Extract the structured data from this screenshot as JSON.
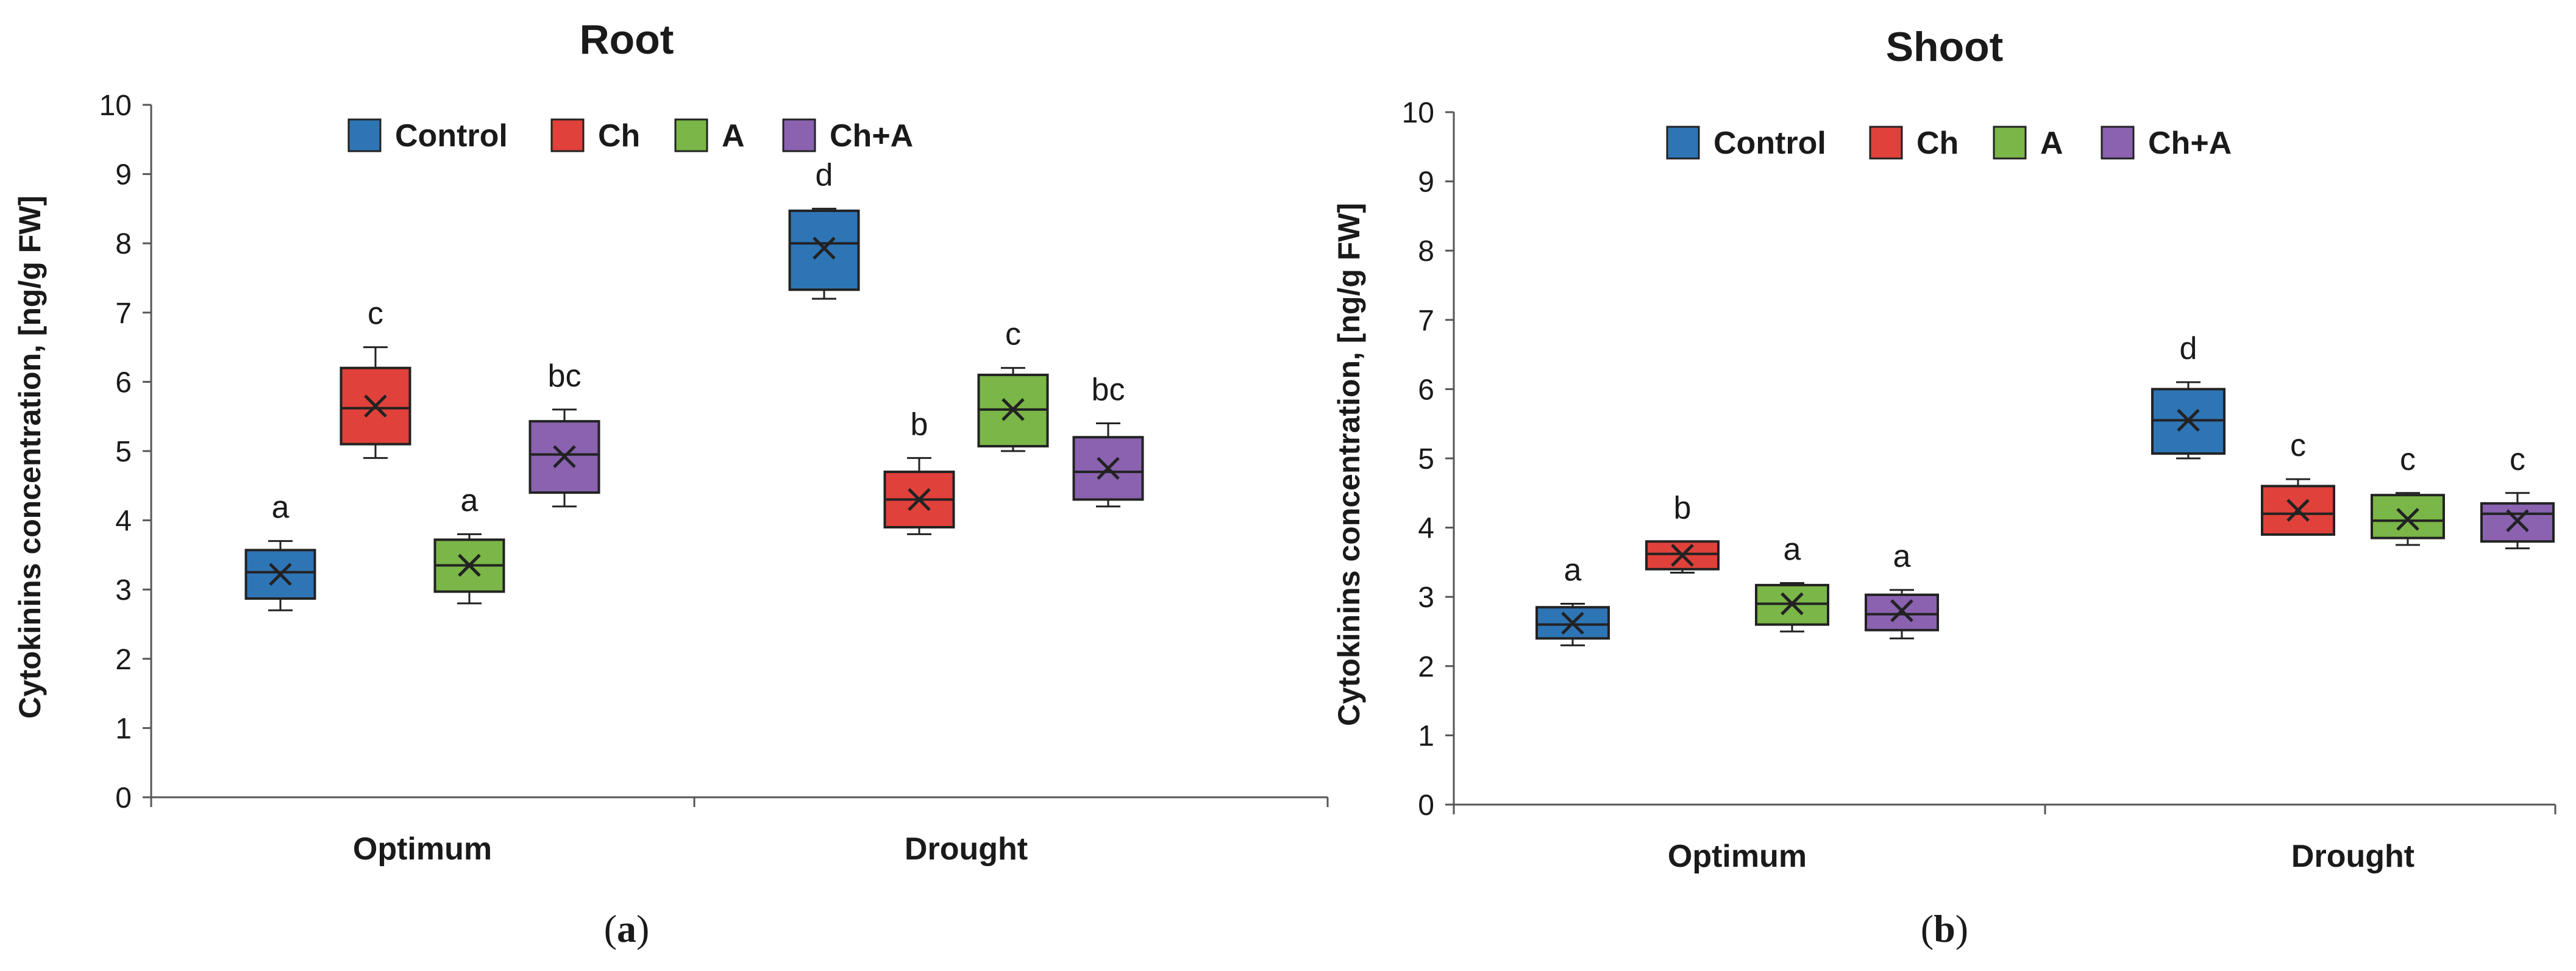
{
  "chart_data": [
    {
      "type": "box",
      "panel_label": "a",
      "title": "Root",
      "ylabel": "Cytokinins concentration, [ng/g FW]",
      "xlabel": "",
      "ylim": [
        0,
        10
      ],
      "yticks": [
        "0",
        "1",
        "2",
        "3",
        "4",
        "5",
        "6",
        "7",
        "8",
        "9",
        "10"
      ],
      "categories": [
        "Optimum",
        "Drought"
      ],
      "legend_position": "top-center",
      "series": [
        {
          "name": "Control",
          "color": "#2e75b6",
          "boxes": [
            {
              "whisker_low": 2.7,
              "q1": 2.87,
              "median": 3.25,
              "q3": 3.57,
              "whisker_high": 3.7,
              "mean": 3.22,
              "letter": "a"
            },
            {
              "whisker_low": 7.2,
              "q1": 7.33,
              "median": 8.0,
              "q3": 8.47,
              "whisker_high": 8.5,
              "mean": 7.93,
              "letter": "d"
            }
          ]
        },
        {
          "name": "Ch",
          "color": "#e0413a",
          "boxes": [
            {
              "whisker_low": 4.9,
              "q1": 5.1,
              "median": 5.62,
              "q3": 6.2,
              "whisker_high": 6.5,
              "mean": 5.65,
              "letter": "c"
            },
            {
              "whisker_low": 3.8,
              "q1": 3.9,
              "median": 4.3,
              "q3": 4.7,
              "whisker_high": 4.9,
              "mean": 4.3,
              "letter": "b"
            }
          ]
        },
        {
          "name": "A",
          "color": "#7ab648",
          "boxes": [
            {
              "whisker_low": 2.8,
              "q1": 2.97,
              "median": 3.35,
              "q3": 3.72,
              "whisker_high": 3.8,
              "mean": 3.35,
              "letter": "a"
            },
            {
              "whisker_low": 5.0,
              "q1": 5.07,
              "median": 5.6,
              "q3": 6.1,
              "whisker_high": 6.2,
              "mean": 5.6,
              "letter": "c"
            }
          ]
        },
        {
          "name": "Ch+A",
          "color": "#8a62b0",
          "boxes": [
            {
              "whisker_low": 4.2,
              "q1": 4.4,
              "median": 4.95,
              "q3": 5.43,
              "whisker_high": 5.6,
              "mean": 4.92,
              "letter": "bc"
            },
            {
              "whisker_low": 4.2,
              "q1": 4.3,
              "median": 4.7,
              "q3": 5.2,
              "whisker_high": 5.4,
              "mean": 4.75,
              "letter": "bc"
            }
          ]
        }
      ]
    },
    {
      "type": "box",
      "panel_label": "b",
      "title": "Shoot",
      "ylabel": "Cytokinins concentration, [ng/g FW]",
      "xlabel": "",
      "ylim": [
        0,
        10
      ],
      "yticks": [
        "0",
        "1",
        "2",
        "3",
        "4",
        "5",
        "6",
        "7",
        "8",
        "9",
        "10"
      ],
      "categories": [
        "Optimum",
        "Drought"
      ],
      "legend_position": "top-center",
      "series": [
        {
          "name": "Control",
          "color": "#2e75b6",
          "boxes": [
            {
              "whisker_low": 2.3,
              "q1": 2.4,
              "median": 2.6,
              "q3": 2.85,
              "whisker_high": 2.9,
              "mean": 2.62,
              "letter": "a"
            },
            {
              "whisker_low": 5.0,
              "q1": 5.07,
              "median": 5.55,
              "q3": 6.0,
              "whisker_high": 6.1,
              "mean": 5.55,
              "letter": "d"
            }
          ]
        },
        {
          "name": "Ch",
          "color": "#e0413a",
          "boxes": [
            {
              "whisker_low": 3.35,
              "q1": 3.4,
              "median": 3.62,
              "q3": 3.8,
              "whisker_high": 3.8,
              "mean": 3.6,
              "letter": "b"
            },
            {
              "whisker_low": 3.9,
              "q1": 3.9,
              "median": 4.2,
              "q3": 4.6,
              "whisker_high": 4.7,
              "mean": 4.25,
              "letter": "c"
            }
          ]
        },
        {
          "name": "A",
          "color": "#7ab648",
          "boxes": [
            {
              "whisker_low": 2.5,
              "q1": 2.6,
              "median": 2.9,
              "q3": 3.17,
              "whisker_high": 3.2,
              "mean": 2.9,
              "letter": "a"
            },
            {
              "whisker_low": 3.75,
              "q1": 3.85,
              "median": 4.1,
              "q3": 4.47,
              "whisker_high": 4.5,
              "mean": 4.12,
              "letter": "c"
            }
          ]
        },
        {
          "name": "Ch+A",
          "color": "#8a62b0",
          "boxes": [
            {
              "whisker_low": 2.4,
              "q1": 2.52,
              "median": 2.75,
              "q3": 3.03,
              "whisker_high": 3.1,
              "mean": 2.8,
              "letter": "a"
            },
            {
              "whisker_low": 3.7,
              "q1": 3.8,
              "median": 4.2,
              "q3": 4.35,
              "whisker_high": 4.5,
              "mean": 4.1,
              "letter": "c"
            }
          ]
        }
      ]
    }
  ]
}
